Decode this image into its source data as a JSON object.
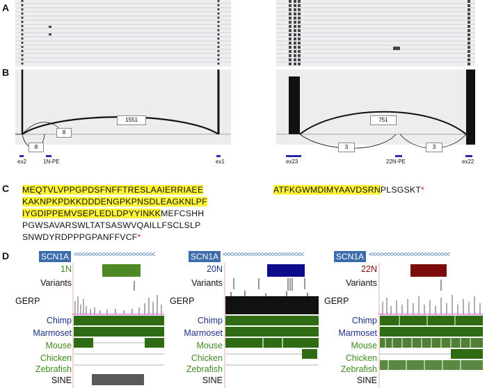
{
  "panels": {
    "a": "A",
    "b": "B",
    "c": "C",
    "d": "D"
  },
  "panel_b": {
    "left": {
      "junction_counts": [
        "1551",
        "8",
        "8"
      ],
      "exon_labels": [
        "ex2",
        "1N-PE",
        "ex1"
      ]
    },
    "right": {
      "junction_counts": [
        "751",
        "3",
        "3"
      ],
      "exon_labels": [
        "ex23",
        "22N-PE",
        "ex22"
      ]
    }
  },
  "panel_c": {
    "left_lines": [
      {
        "highlighted": "MEQTVLVPPGPDSFNFFTRESLAAIERRIAEE",
        "plain": ""
      },
      {
        "highlighted": "KAKNPKPDKKDDDENGPKPNSDLEAGKNLPF",
        "plain": ""
      },
      {
        "highlighted": "IYGDIPPEMVSEPLEDLDPYYINKK",
        "plain": "MEFCSHH"
      },
      {
        "highlighted": "",
        "plain": "PGWSAVARSWLTATSASWVQAILLFSCLSLP"
      },
      {
        "highlighted": "",
        "plain": "SNWDYRDPPPGPANFFVCF"
      }
    ],
    "right_line": {
      "highlighted": "ATFKGWMDIMYAAVDSRN",
      "plain": "PLSGSKT"
    },
    "stop_symbol": "*"
  },
  "panel_d": {
    "gene": "SCN1A",
    "direction_glyphs": "<<<<<<<<<<<<<<<<<<<<<<<<",
    "gerp_label": "GERP",
    "variants_label": "Variants",
    "sine_label": "SINE",
    "species": [
      {
        "name": "Chimp",
        "color": "#1c2f86"
      },
      {
        "name": "Marmoset",
        "color": "#1c2f86"
      },
      {
        "name": "Mouse",
        "color": "#3f8a1f"
      },
      {
        "name": "Chicken",
        "color": "#3f8a1f"
      },
      {
        "name": "Zebrafish",
        "color": "#3f8a1f"
      }
    ],
    "columns": [
      {
        "exon_label": "1N",
        "exon_color": "#4e8a23",
        "label_color": "#3f8a1f"
      },
      {
        "exon_label": "20N",
        "exon_color": "#0c0c8c",
        "label_color": "#1c2f86"
      },
      {
        "exon_label": "22N",
        "exon_color": "#7a0c0c",
        "label_color": "#7a0c0c"
      }
    ],
    "conservation_color": "#2f6b13",
    "sine_color": "#5a5a5a"
  }
}
